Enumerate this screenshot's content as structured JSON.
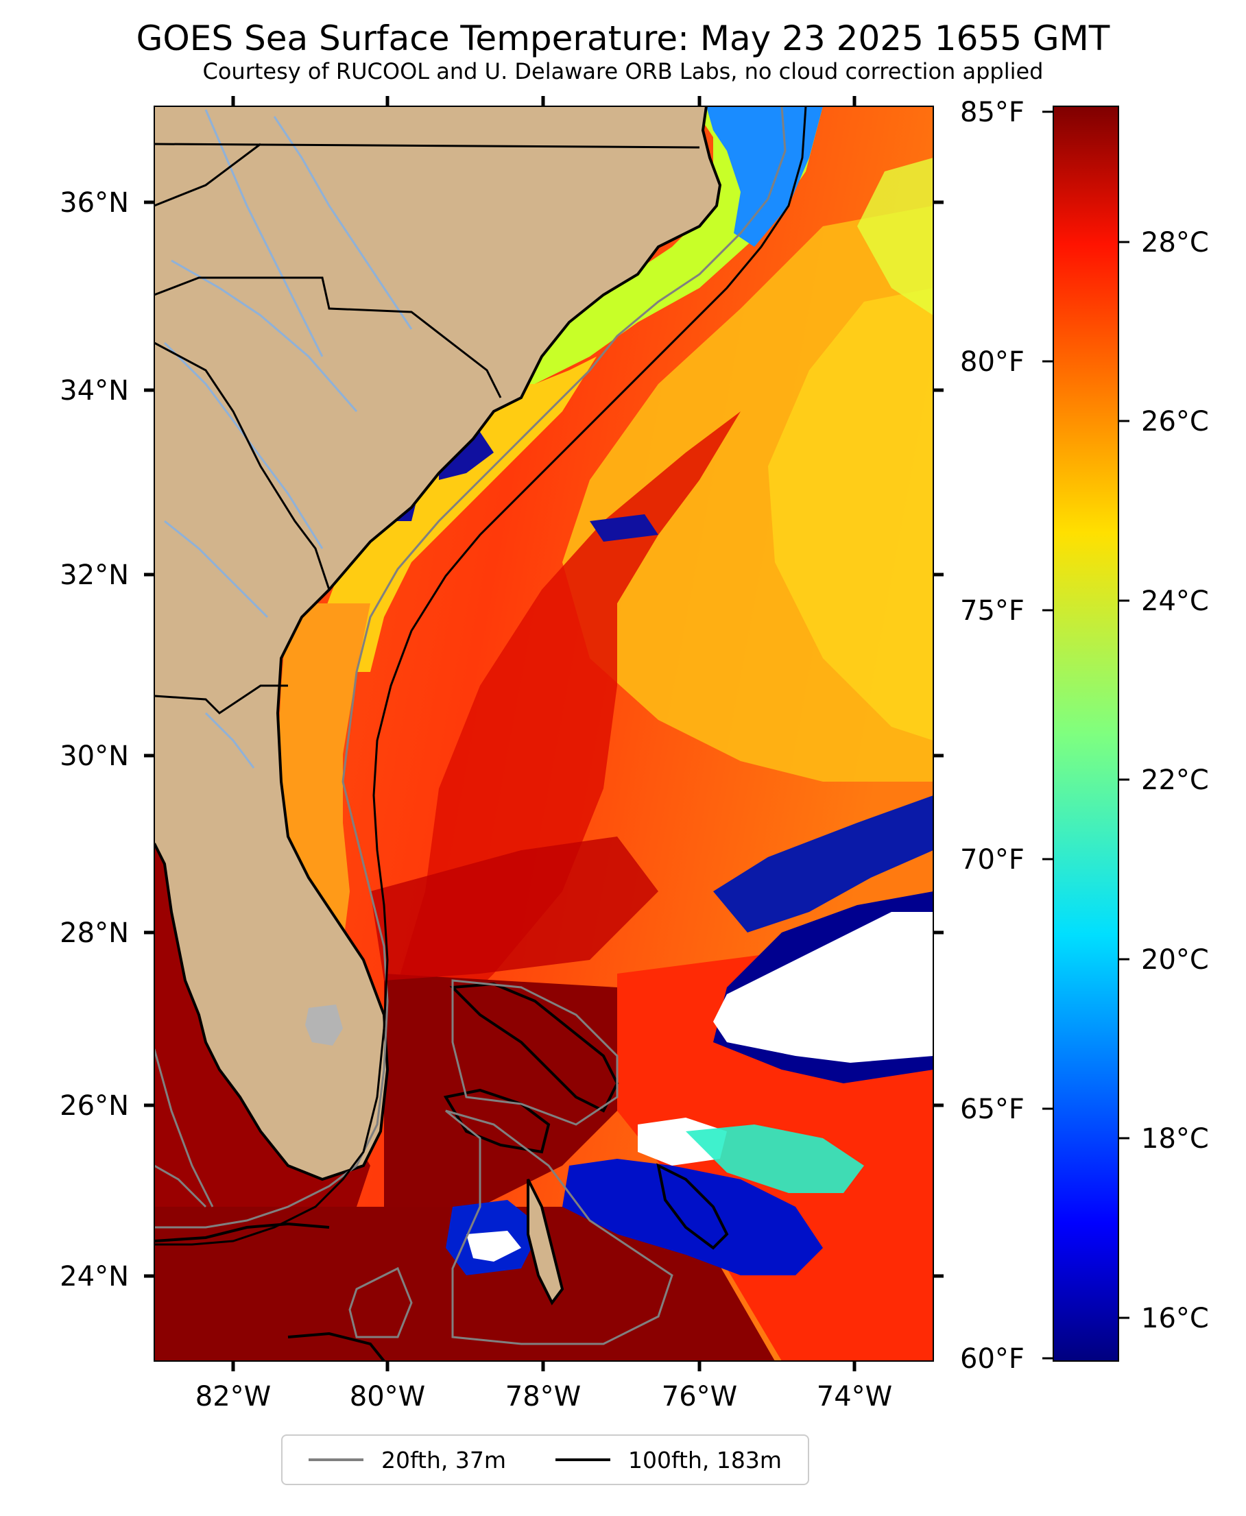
{
  "title": "GOES Sea Surface Temperature: May 23 2025 1655 GMT",
  "subtitle": "Courtesy of RUCOOL and U. Delaware ORB Labs, no cloud correction applied",
  "map": {
    "lon_labels": [
      "82°W",
      "80°W",
      "78°W",
      "76°W",
      "74°W"
    ],
    "lat_labels": [
      "36°N",
      "34°N",
      "32°N",
      "30°N",
      "28°N",
      "26°N",
      "24°N"
    ],
    "colors": {
      "land": "#d2b48c",
      "rivers": "#8fb1d8",
      "cloud": "#ffffff",
      "lake": "#b4b4b4"
    }
  },
  "colorbar": {
    "fahrenheit_labels": [
      "85°F",
      "80°F",
      "75°F",
      "70°F",
      "65°F",
      "60°F"
    ],
    "celsius_labels": [
      "28°C",
      "26°C",
      "24°C",
      "22°C",
      "20°C",
      "18°C",
      "16°C"
    ],
    "colormap": "jet",
    "range_f": [
      60,
      85
    ]
  },
  "legend": {
    "items": [
      {
        "label": "20fth, 37m",
        "color": "#808080"
      },
      {
        "label": "100fth, 183m",
        "color": "#000000"
      }
    ]
  }
}
